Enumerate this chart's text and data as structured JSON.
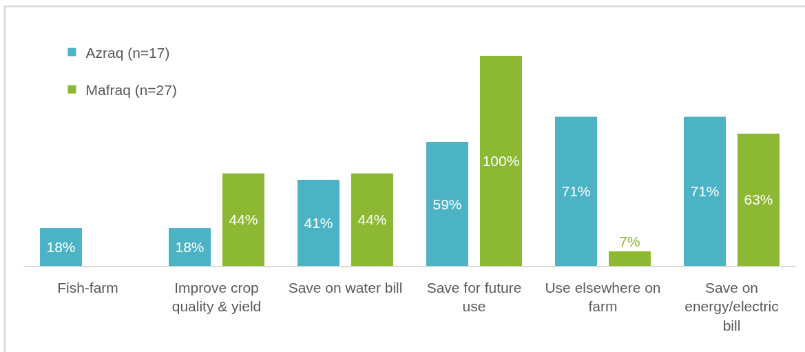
{
  "chart_data": {
    "type": "bar",
    "categories": [
      "Fish-farm",
      "Improve crop quality & yield",
      "Save on water bill",
      "Save for future use",
      "Use elsewhere on farm",
      "Save on energy/electric bill"
    ],
    "series": [
      {
        "name": "Azraq (n=17)",
        "color": "#4bb3c4",
        "values": [
          18,
          18,
          41,
          59,
          71,
          71
        ],
        "value_labels": [
          "18%",
          "18%",
          "41%",
          "59%",
          "71%",
          "71%"
        ]
      },
      {
        "name": "Mafraq (n=27)",
        "color": "#8cb833",
        "values": [
          null,
          44,
          44,
          100,
          7,
          63
        ],
        "value_labels": [
          null,
          "44%",
          "44%",
          "100%",
          "7%",
          "63%"
        ]
      }
    ],
    "legend": "top left"
  }
}
